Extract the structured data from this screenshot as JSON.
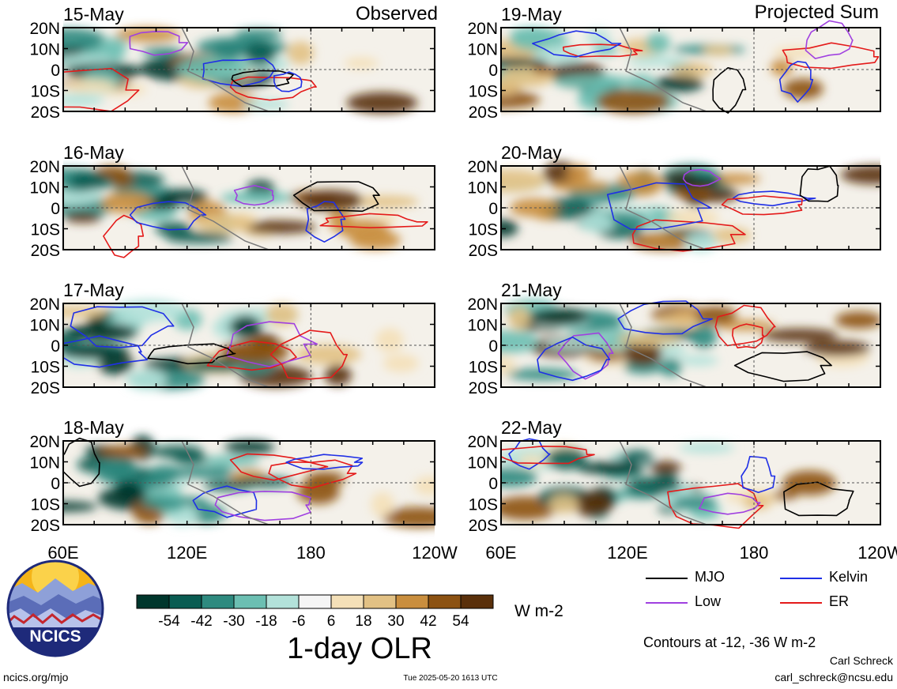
{
  "panel_header_left": "Observed",
  "panel_header_right": "Projected Sum",
  "panels": [
    {
      "date": "15-May",
      "column": "observed"
    },
    {
      "date": "16-May",
      "column": "observed"
    },
    {
      "date": "17-May",
      "column": "observed"
    },
    {
      "date": "18-May",
      "column": "observed"
    },
    {
      "date": "19-May",
      "column": "projected"
    },
    {
      "date": "20-May",
      "column": "projected"
    },
    {
      "date": "21-May",
      "column": "projected"
    },
    {
      "date": "22-May",
      "column": "projected"
    }
  ],
  "lat_labels": [
    "20N",
    "10N",
    "0",
    "10S",
    "20S"
  ],
  "lon_labels": [
    "60E",
    "120E",
    "180",
    "120W"
  ],
  "colorbar": {
    "ticks": [
      "-54",
      "-42",
      "-30",
      "-18",
      "-6",
      "6",
      "18",
      "30",
      "42",
      "54"
    ],
    "colors": [
      "#00362c",
      "#0a5c52",
      "#2e8a7f",
      "#6cbfb2",
      "#b3e2da",
      "#f5f5f5",
      "#f4e0b8",
      "#e2c184",
      "#c98e3e",
      "#8c5212",
      "#5a300b"
    ],
    "units": "W m-2",
    "title": "1-day OLR"
  },
  "legend": {
    "items": [
      {
        "label": "MJO",
        "color": "#000000"
      },
      {
        "label": "Kelvin",
        "color": "#1f2fe6"
      },
      {
        "label": "Low",
        "color": "#a040e0"
      },
      {
        "label": "ER",
        "color": "#e41a1a"
      }
    ],
    "contours_note": "Contours at -12, -36 W m-2"
  },
  "footer": {
    "org_url": "ncics.org/mjo",
    "timestamp": "Tue 2025-05-20 1613 UTC",
    "author": "Carl Schreck",
    "email": "carl_schreck@ncsu.edu",
    "logo_text": "NCICS"
  }
}
